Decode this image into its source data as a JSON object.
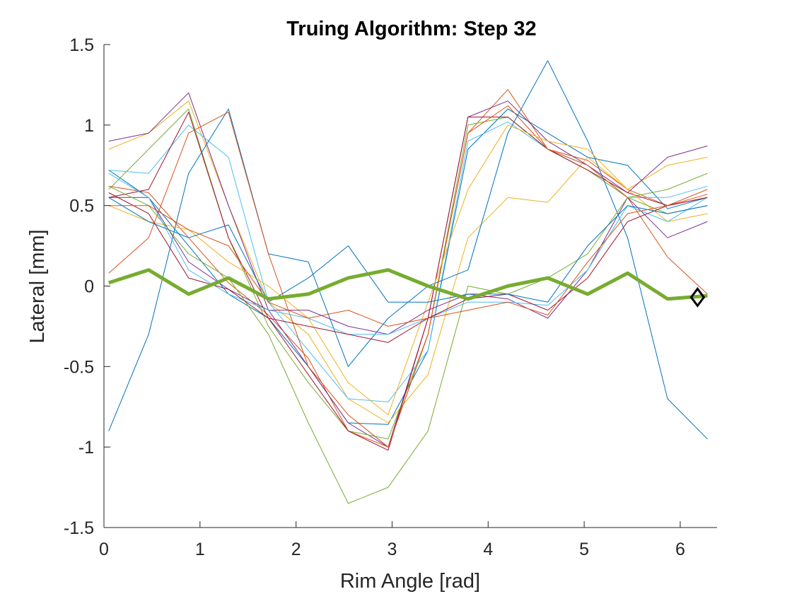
{
  "chart_data": {
    "type": "line",
    "title": "Truing Algorithm: Step 32",
    "xlabel": "Rim Angle [rad]",
    "ylabel": "Lateral [mm]",
    "xlim": [
      0,
      6.3832
    ],
    "ylim": [
      -1.5,
      1.5
    ],
    "xticks": [
      0,
      1,
      2,
      3,
      4,
      5,
      6
    ],
    "yticks": [
      -1.5,
      -1,
      -0.5,
      0,
      0.5,
      1,
      1.5
    ],
    "xtick_labels": [
      "0",
      "1",
      "2",
      "3",
      "4",
      "5",
      "6"
    ],
    "ytick_labels": [
      "-1.5",
      "-1",
      "-0.5",
      "0",
      "0.5",
      "1",
      "1.5"
    ],
    "grid": false,
    "box": "off",
    "series": [
      {
        "color": "#0072BD",
        "values": [
          0.72,
          0.55,
          0.25,
          -0.05,
          -0.2,
          -0.5,
          -0.85,
          -0.86,
          -0.4,
          0.85,
          1.1,
          0.95,
          0.8,
          0.75,
          0.48,
          0.55
        ]
      },
      {
        "color": "#D95319",
        "values": [
          0.62,
          0.58,
          0.3,
          0.02,
          -0.18,
          -0.45,
          -0.9,
          -1.0,
          -0.3,
          0.95,
          1.22,
          0.85,
          0.78,
          0.6,
          0.5,
          0.57
        ]
      },
      {
        "color": "#EDB120",
        "values": [
          0.85,
          0.95,
          1.15,
          0.5,
          -0.1,
          -0.3,
          -0.7,
          -0.85,
          -0.55,
          0.3,
          0.55,
          0.52,
          0.8,
          0.6,
          0.75,
          0.8
        ]
      },
      {
        "color": "#7E2F8E",
        "values": [
          0.9,
          0.95,
          1.2,
          0.5,
          -0.15,
          -0.5,
          -0.85,
          -1.0,
          -0.2,
          1.05,
          1.15,
          0.9,
          0.75,
          0.58,
          0.8,
          0.87
        ]
      },
      {
        "color": "#77AC30",
        "values": [
          0.6,
          0.85,
          1.1,
          0.3,
          -0.25,
          -0.6,
          -0.9,
          -0.95,
          -0.3,
          1.0,
          1.05,
          0.85,
          0.72,
          0.55,
          0.6,
          0.7
        ]
      },
      {
        "color": "#4DBEEE",
        "values": [
          0.72,
          0.7,
          1.0,
          0.8,
          -0.1,
          -0.4,
          -0.7,
          -0.72,
          -0.4,
          0.9,
          1.02,
          0.85,
          0.75,
          0.55,
          0.55,
          0.62
        ]
      },
      {
        "color": "#A2142F",
        "values": [
          0.55,
          0.6,
          1.08,
          0.3,
          -0.2,
          -0.55,
          -0.9,
          -1.02,
          -0.2,
          1.05,
          1.05,
          0.85,
          0.72,
          0.58,
          0.5,
          0.55
        ]
      },
      {
        "color": "#0072BD",
        "values": [
          -0.9,
          -0.3,
          0.7,
          1.1,
          0.2,
          0.15,
          -0.5,
          -0.2,
          0.0,
          0.1,
          0.95,
          1.4,
          0.9,
          0.3,
          -0.7,
          -0.95
        ]
      },
      {
        "color": "#D95319",
        "values": [
          0.08,
          0.3,
          0.95,
          1.08,
          0.2,
          -0.5,
          -0.8,
          -1.0,
          -0.3,
          0.95,
          1.12,
          0.85,
          0.75,
          0.55,
          0.18,
          -0.05
        ]
      },
      {
        "color": "#EDB120",
        "values": [
          0.5,
          0.4,
          0.35,
          0.15,
          0.0,
          -0.2,
          -0.6,
          -0.8,
          -0.1,
          0.6,
          1.0,
          0.9,
          0.85,
          0.6,
          0.4,
          0.45
        ]
      },
      {
        "color": "#7E2F8E",
        "values": [
          0.55,
          0.55,
          0.15,
          -0.02,
          -0.15,
          -0.15,
          -0.25,
          -0.3,
          -0.15,
          -0.05,
          -0.08,
          -0.2,
          0.1,
          0.55,
          0.3,
          0.4
        ]
      },
      {
        "color": "#77AC30",
        "values": [
          0.62,
          0.5,
          0.2,
          0.05,
          -0.3,
          -0.85,
          -1.35,
          -1.25,
          -0.9,
          0.0,
          -0.05,
          0.05,
          0.2,
          0.55,
          0.45,
          0.5
        ]
      },
      {
        "color": "#4DBEEE",
        "values": [
          0.7,
          0.55,
          0.1,
          -0.05,
          -0.15,
          -0.2,
          -0.3,
          -0.3,
          -0.2,
          -0.1,
          -0.1,
          -0.12,
          0.1,
          0.5,
          0.4,
          0.55
        ]
      },
      {
        "color": "#A2142F",
        "values": [
          0.58,
          0.45,
          0.05,
          -0.02,
          -0.2,
          -0.25,
          -0.3,
          -0.35,
          -0.2,
          -0.08,
          -0.05,
          -0.15,
          0.05,
          0.4,
          0.5,
          0.55
        ]
      },
      {
        "color": "#0072BD",
        "values": [
          0.55,
          0.4,
          0.3,
          0.38,
          -0.1,
          0.05,
          0.25,
          -0.1,
          -0.1,
          -0.05,
          -0.05,
          -0.1,
          0.25,
          0.5,
          0.45,
          0.5
        ]
      },
      {
        "color": "#D95319",
        "values": [
          0.5,
          0.5,
          0.35,
          0.25,
          -0.1,
          -0.2,
          -0.15,
          -0.25,
          -0.2,
          -0.15,
          -0.1,
          -0.18,
          0.15,
          0.45,
          0.5,
          0.6
        ]
      }
    ],
    "highlight_series": {
      "color": "#77AC30",
      "values": [
        0.02,
        0.1,
        -0.05,
        0.05,
        -0.08,
        -0.05,
        0.05,
        0.1,
        0.0,
        -0.08,
        0.0,
        0.05,
        -0.05,
        0.08,
        -0.08,
        -0.06
      ]
    },
    "marker": {
      "shape": "diamond",
      "x": 6.18,
      "y": -0.07,
      "color": "#000000"
    }
  }
}
